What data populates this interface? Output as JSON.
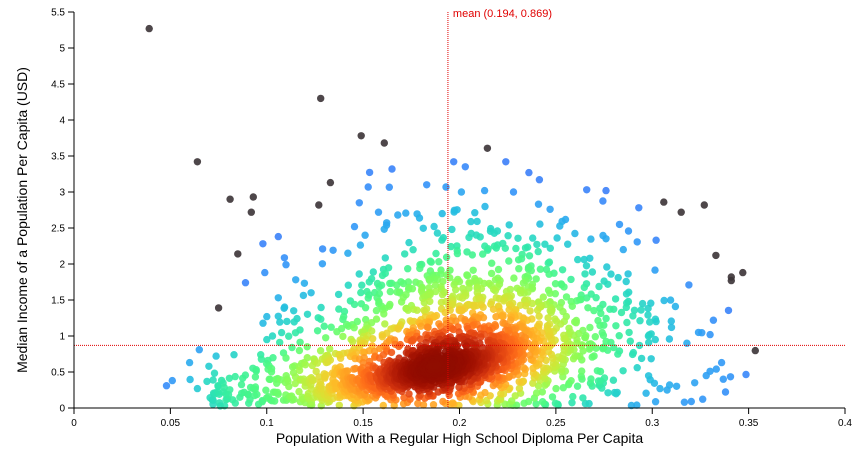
{
  "chart_data": {
    "type": "scatter",
    "title": "",
    "xlabel": "Population With a Regular High School Diploma Per Capita",
    "ylabel": "Median Income of a Population Per Capita (USD)",
    "xlim": [
      0,
      0.4
    ],
    "ylim": [
      0,
      5.5
    ],
    "xticks": [
      "0",
      "0.05",
      "0.1",
      "0.15",
      "0.2",
      "0.25",
      "0.3",
      "0.35",
      "0.4"
    ],
    "yticks": [
      "0",
      "0.5",
      "1",
      "1.5",
      "2",
      "2.5",
      "3",
      "3.5",
      "4",
      "4.5",
      "5",
      "5.5"
    ],
    "color_encoding": "point density (turbo colormap: dark gray/blue = sparse, dark red = dense)",
    "mean": {
      "x": 0.194,
      "y": 0.869,
      "label": "mean (0.194, 0.869)",
      "color": "#e00000"
    },
    "outlier_points": [
      [
        0.039,
        5.27
      ],
      [
        0.128,
        4.3
      ],
      [
        0.149,
        3.78
      ],
      [
        0.161,
        3.68
      ],
      [
        0.064,
        3.42
      ],
      [
        0.197,
        3.42
      ],
      [
        0.224,
        3.42
      ],
      [
        0.165,
        3.32
      ],
      [
        0.203,
        3.35
      ],
      [
        0.236,
        3.27
      ],
      [
        0.133,
        3.13
      ],
      [
        0.183,
        3.1
      ],
      [
        0.193,
        3.07
      ],
      [
        0.201,
        3.0
      ],
      [
        0.213,
        3.02
      ],
      [
        0.228,
        3.0
      ],
      [
        0.266,
        3.03
      ],
      [
        0.276,
        3.02
      ],
      [
        0.093,
        2.93
      ],
      [
        0.081,
        2.9
      ],
      [
        0.127,
        2.82
      ],
      [
        0.148,
        2.85
      ],
      [
        0.241,
        2.83
      ],
      [
        0.306,
        2.86
      ],
      [
        0.092,
        2.72
      ],
      [
        0.158,
        2.72
      ],
      [
        0.168,
        2.68
      ],
      [
        0.191,
        2.7
      ],
      [
        0.247,
        2.76
      ],
      [
        0.293,
        2.78
      ],
      [
        0.327,
        2.82
      ],
      [
        0.315,
        2.72
      ],
      [
        0.283,
        2.55
      ],
      [
        0.276,
        2.35
      ],
      [
        0.106,
        2.38
      ],
      [
        0.098,
        2.28
      ],
      [
        0.302,
        2.33
      ],
      [
        0.151,
        2.4
      ],
      [
        0.085,
        2.14
      ],
      [
        0.129,
        2.21
      ],
      [
        0.333,
        2.12
      ],
      [
        0.285,
        2.2
      ],
      [
        0.099,
        1.88
      ],
      [
        0.11,
        1.99
      ],
      [
        0.341,
        1.82
      ],
      [
        0.319,
        1.71
      ],
      [
        0.347,
        1.88
      ],
      [
        0.089,
        1.74
      ],
      [
        0.115,
        1.78
      ],
      [
        0.106,
        1.53
      ],
      [
        0.123,
        1.6
      ],
      [
        0.295,
        1.45
      ],
      [
        0.312,
        1.41
      ],
      [
        0.341,
        1.77
      ],
      [
        0.075,
        1.39
      ],
      [
        0.1,
        1.27
      ],
      [
        0.114,
        1.35
      ],
      [
        0.302,
        1.2
      ],
      [
        0.31,
        1.12
      ],
      [
        0.298,
        1.0
      ],
      [
        0.065,
        0.81
      ],
      [
        0.083,
        0.74
      ],
      [
        0.1,
        0.95
      ],
      [
        0.103,
        1.0
      ],
      [
        0.121,
        0.85
      ],
      [
        0.324,
        1.05
      ],
      [
        0.33,
        1.02
      ],
      [
        0.318,
        0.9
      ],
      [
        0.06,
        0.63
      ],
      [
        0.048,
        0.31
      ],
      [
        0.051,
        0.38
      ],
      [
        0.064,
        0.27
      ],
      [
        0.069,
        0.37
      ],
      [
        0.093,
        0.27
      ],
      [
        0.322,
        0.35
      ],
      [
        0.33,
        0.51
      ],
      [
        0.336,
        0.63
      ],
      [
        0.309,
        0.32
      ],
      [
        0.304,
        0.27
      ],
      [
        0.328,
        0.45
      ]
    ],
    "cluster_summary": {
      "core_center": [
        0.182,
        0.5
      ],
      "bulk_x_range": [
        0.06,
        0.35
      ],
      "bulk_y_range": [
        0,
        3.4
      ]
    }
  }
}
